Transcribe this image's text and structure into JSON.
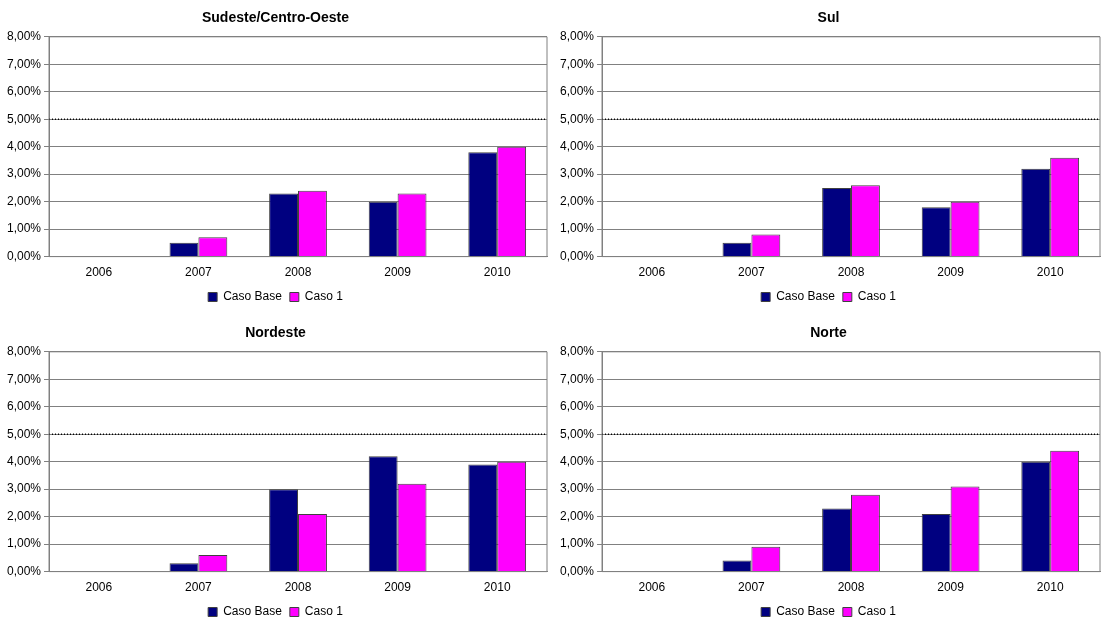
{
  "chart_data": [
    {
      "type": "bar",
      "title": "Sudeste/Centro-Oeste",
      "categories": [
        "2006",
        "2007",
        "2008",
        "2009",
        "2010"
      ],
      "series": [
        {
          "name": "Caso Base",
          "color": "#000080",
          "values": [
            0,
            0.5,
            2.3,
            2.0,
            3.8
          ]
        },
        {
          "name": "Caso 1",
          "color": "#ff00ff",
          "values": [
            0,
            0.7,
            2.4,
            2.3,
            4.0
          ]
        }
      ],
      "ylim": [
        0,
        8
      ],
      "yticks": [
        {
          "value": 0,
          "label": "0,00%"
        },
        {
          "value": 1,
          "label": "1,00%"
        },
        {
          "value": 2,
          "label": "2,00%"
        },
        {
          "value": 3,
          "label": "3,00%"
        },
        {
          "value": 4,
          "label": "4,00%"
        },
        {
          "value": 5,
          "label": "5,00%"
        },
        {
          "value": 6,
          "label": "6,00%"
        },
        {
          "value": 7,
          "label": "7,00%"
        },
        {
          "value": 8,
          "label": "8,00%"
        }
      ],
      "ref_lines": [
        {
          "axis": "y",
          "value": 5,
          "color": "#000000",
          "line_style": "dotted"
        }
      ],
      "grid": "y",
      "legend": "bottom"
    },
    {
      "type": "bar",
      "title": "Sul",
      "categories": [
        "2006",
        "2007",
        "2008",
        "2009",
        "2010"
      ],
      "series": [
        {
          "name": "Caso Base",
          "color": "#000080",
          "values": [
            0,
            0.5,
            2.5,
            1.8,
            3.2
          ]
        },
        {
          "name": "Caso 1",
          "color": "#ff00ff",
          "values": [
            0,
            0.8,
            2.6,
            2.0,
            3.6
          ]
        }
      ],
      "ylim": [
        0,
        8
      ],
      "yticks": [
        {
          "value": 0,
          "label": "0,00%"
        },
        {
          "value": 1,
          "label": "1,00%"
        },
        {
          "value": 2,
          "label": "2,00%"
        },
        {
          "value": 3,
          "label": "3,00%"
        },
        {
          "value": 4,
          "label": "4,00%"
        },
        {
          "value": 5,
          "label": "5,00%"
        },
        {
          "value": 6,
          "label": "6,00%"
        },
        {
          "value": 7,
          "label": "7,00%"
        },
        {
          "value": 8,
          "label": "8,00%"
        }
      ],
      "ref_lines": [
        {
          "axis": "y",
          "value": 5,
          "color": "#000000",
          "line_style": "dotted"
        }
      ],
      "grid": "y",
      "legend": "bottom"
    },
    {
      "type": "bar",
      "title": "Nordeste",
      "categories": [
        "2006",
        "2007",
        "2008",
        "2009",
        "2010"
      ],
      "series": [
        {
          "name": "Caso Base",
          "color": "#000080",
          "values": [
            0,
            0.3,
            3.0,
            4.2,
            3.9
          ]
        },
        {
          "name": "Caso 1",
          "color": "#ff00ff",
          "values": [
            0,
            0.6,
            2.1,
            3.2,
            4.0
          ]
        }
      ],
      "ylim": [
        0,
        8
      ],
      "yticks": [
        {
          "value": 0,
          "label": "0,00%"
        },
        {
          "value": 1,
          "label": "1,00%"
        },
        {
          "value": 2,
          "label": "2,00%"
        },
        {
          "value": 3,
          "label": "3,00%"
        },
        {
          "value": 4,
          "label": "4,00%"
        },
        {
          "value": 5,
          "label": "5,00%"
        },
        {
          "value": 6,
          "label": "6,00%"
        },
        {
          "value": 7,
          "label": "7,00%"
        },
        {
          "value": 8,
          "label": "8,00%"
        }
      ],
      "ref_lines": [
        {
          "axis": "y",
          "value": 5,
          "color": "#000000",
          "line_style": "dotted"
        }
      ],
      "grid": "y",
      "legend": "bottom"
    },
    {
      "type": "bar",
      "title": "Norte",
      "categories": [
        "2006",
        "2007",
        "2008",
        "2009",
        "2010"
      ],
      "series": [
        {
          "name": "Caso Base",
          "color": "#000080",
          "values": [
            0,
            0.4,
            2.3,
            2.1,
            4.0
          ]
        },
        {
          "name": "Caso 1",
          "color": "#ff00ff",
          "values": [
            0,
            0.9,
            2.8,
            3.1,
            4.4
          ]
        }
      ],
      "ylim": [
        0,
        8
      ],
      "yticks": [
        {
          "value": 0,
          "label": "0,00%"
        },
        {
          "value": 1,
          "label": "1,00%"
        },
        {
          "value": 2,
          "label": "2,00%"
        },
        {
          "value": 3,
          "label": "3,00%"
        },
        {
          "value": 4,
          "label": "4,00%"
        },
        {
          "value": 5,
          "label": "5,00%"
        },
        {
          "value": 6,
          "label": "6,00%"
        },
        {
          "value": 7,
          "label": "7,00%"
        },
        {
          "value": 8,
          "label": "8,00%"
        }
      ],
      "ref_lines": [
        {
          "axis": "y",
          "value": 5,
          "color": "#000000",
          "line_style": "dotted"
        }
      ],
      "grid": "y",
      "legend": "bottom"
    }
  ]
}
